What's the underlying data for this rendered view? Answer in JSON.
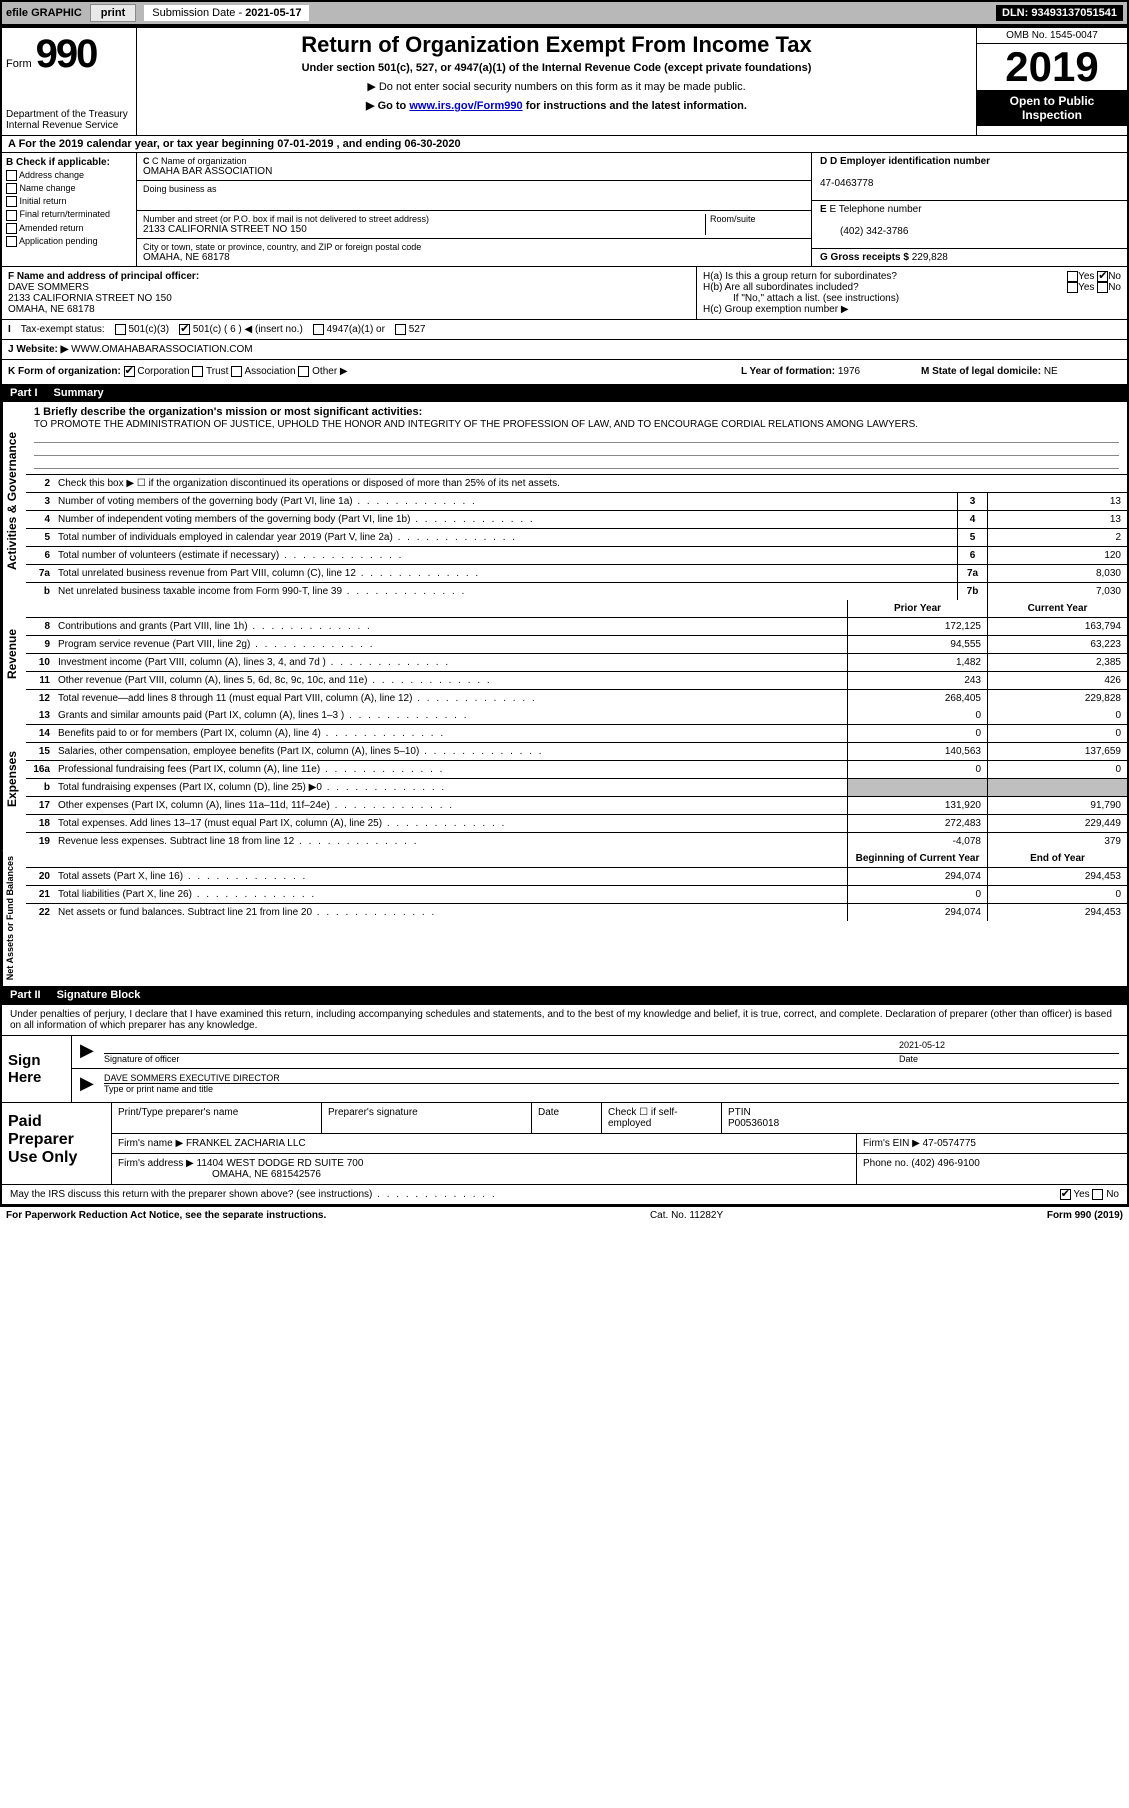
{
  "topbar": {
    "efile": "efile GRAPHIC",
    "print": "print",
    "sub_label": "Submission Date - ",
    "sub_date": "2021-05-17",
    "dln": "DLN: 93493137051541"
  },
  "header": {
    "form_word": "Form",
    "form_num": "990",
    "dept": "Department of the Treasury\nInternal Revenue Service",
    "title": "Return of Organization Exempt From Income Tax",
    "subtitle": "Under section 501(c), 527, or 4947(a)(1) of the Internal Revenue Code (except private foundations)",
    "note1": "▶ Do not enter social security numbers on this form as it may be made public.",
    "note2_pre": "▶ Go to ",
    "note2_link": "www.irs.gov/Form990",
    "note2_post": " for instructions and the latest information.",
    "omb": "OMB No. 1545-0047",
    "year": "2019",
    "open": "Open to Public Inspection"
  },
  "line_a": "A For the 2019 calendar year, or tax year beginning 07-01-2019   , and ending 06-30-2020",
  "col_b": {
    "header": "B Check if applicable:",
    "items": [
      "Address change",
      "Name change",
      "Initial return",
      "Final return/terminated",
      "Amended return",
      "Application pending"
    ]
  },
  "col_c": {
    "name_lbl": "C Name of organization",
    "name": "OMAHA BAR ASSOCIATION",
    "dba_lbl": "Doing business as",
    "dba": "",
    "street_lbl": "Number and street (or P.O. box if mail is not delivered to street address)",
    "room_lbl": "Room/suite",
    "street": "2133 CALIFORNIA STREET NO 150",
    "city_lbl": "City or town, state or province, country, and ZIP or foreign postal code",
    "city": "OMAHA, NE  68178"
  },
  "col_d": {
    "ein_lbl": "D Employer identification number",
    "ein": "47-0463778",
    "phone_lbl": "E Telephone number",
    "phone": "(402) 342-3786",
    "gross_lbl": "G Gross receipts $",
    "gross": "229,828"
  },
  "row_f": {
    "f_lbl": "F  Name and address of principal officer:",
    "f_name": "DAVE SOMMERS",
    "f_addr1": "2133 CALIFORNIA STREET NO 150",
    "f_addr2": "OMAHA, NE  68178",
    "ha": "H(a)  Is this a group return for subordinates?",
    "hb": "H(b)  Are all subordinates included?",
    "hb_note": "If \"No,\" attach a list. (see instructions)",
    "hc": "H(c)  Group exemption number ▶",
    "yes": "Yes",
    "no": "No"
  },
  "tax_status": {
    "label": "Tax-exempt status:",
    "opt1": "501(c)(3)",
    "opt2": "501(c) ( 6 ) ◀ (insert no.)",
    "opt3": "4947(a)(1) or",
    "opt4": "527"
  },
  "website": {
    "j_lbl": "J  Website: ▶",
    "url": "WWW.OMAHABARASSOCIATION.COM"
  },
  "k_row": {
    "k_lbl": "K Form of organization:",
    "corp": "Corporation",
    "trust": "Trust",
    "assoc": "Association",
    "other": "Other ▶",
    "l_lbl": "L Year of formation:",
    "l_val": "1976",
    "m_lbl": "M State of legal domicile:",
    "m_val": "NE"
  },
  "part1": {
    "num": "Part I",
    "title": "Summary"
  },
  "mission": {
    "q1_lbl": "1  Briefly describe the organization's mission or most significant activities:",
    "q1_text": "TO PROMOTE THE ADMINISTRATION OF JUSTICE, UPHOLD THE HONOR AND INTEGRITY OF THE PROFESSION OF LAW, AND TO ENCOURAGE CORDIAL RELATIONS AMONG LAWYERS.",
    "q2_lbl": "Check this box ▶ ☐  if the organization discontinued its operations or disposed of more than 25% of its net assets."
  },
  "activities": {
    "side": "Activities & Governance",
    "rows": [
      {
        "n": "3",
        "d": "Number of voting members of the governing body (Part VI, line 1a)",
        "box": "3",
        "v": "13"
      },
      {
        "n": "4",
        "d": "Number of independent voting members of the governing body (Part VI, line 1b)",
        "box": "4",
        "v": "13"
      },
      {
        "n": "5",
        "d": "Total number of individuals employed in calendar year 2019 (Part V, line 2a)",
        "box": "5",
        "v": "2"
      },
      {
        "n": "6",
        "d": "Total number of volunteers (estimate if necessary)",
        "box": "6",
        "v": "120"
      },
      {
        "n": "7a",
        "d": "Total unrelated business revenue from Part VIII, column (C), line 12",
        "box": "7a",
        "v": "8,030"
      },
      {
        "n": "b",
        "d": "Net unrelated business taxable income from Form 990-T, line 39",
        "box": "7b",
        "v": "7,030"
      }
    ]
  },
  "revenue": {
    "side": "Revenue",
    "hdr_prior": "Prior Year",
    "hdr_curr": "Current Year",
    "rows": [
      {
        "n": "8",
        "d": "Contributions and grants (Part VIII, line 1h)",
        "p": "172,125",
        "c": "163,794"
      },
      {
        "n": "9",
        "d": "Program service revenue (Part VIII, line 2g)",
        "p": "94,555",
        "c": "63,223"
      },
      {
        "n": "10",
        "d": "Investment income (Part VIII, column (A), lines 3, 4, and 7d )",
        "p": "1,482",
        "c": "2,385"
      },
      {
        "n": "11",
        "d": "Other revenue (Part VIII, column (A), lines 5, 6d, 8c, 9c, 10c, and 11e)",
        "p": "243",
        "c": "426"
      },
      {
        "n": "12",
        "d": "Total revenue—add lines 8 through 11 (must equal Part VIII, column (A), line 12)",
        "p": "268,405",
        "c": "229,828"
      }
    ]
  },
  "expenses": {
    "side": "Expenses",
    "rows": [
      {
        "n": "13",
        "d": "Grants and similar amounts paid (Part IX, column (A), lines 1–3 )",
        "p": "0",
        "c": "0"
      },
      {
        "n": "14",
        "d": "Benefits paid to or for members (Part IX, column (A), line 4)",
        "p": "0",
        "c": "0"
      },
      {
        "n": "15",
        "d": "Salaries, other compensation, employee benefits (Part IX, column (A), lines 5–10)",
        "p": "140,563",
        "c": "137,659"
      },
      {
        "n": "16a",
        "d": "Professional fundraising fees (Part IX, column (A), line 11e)",
        "p": "0",
        "c": "0"
      },
      {
        "n": "b",
        "d": "Total fundraising expenses (Part IX, column (D), line 25) ▶0",
        "p": "",
        "c": "",
        "shade": true
      },
      {
        "n": "17",
        "d": "Other expenses (Part IX, column (A), lines 11a–11d, 11f–24e)",
        "p": "131,920",
        "c": "91,790"
      },
      {
        "n": "18",
        "d": "Total expenses. Add lines 13–17 (must equal Part IX, column (A), line 25)",
        "p": "272,483",
        "c": "229,449"
      },
      {
        "n": "19",
        "d": "Revenue less expenses. Subtract line 18 from line 12",
        "p": "-4,078",
        "c": "379"
      }
    ]
  },
  "netassets": {
    "side": "Net Assets or Fund Balances",
    "hdr_begin": "Beginning of Current Year",
    "hdr_end": "End of Year",
    "rows": [
      {
        "n": "20",
        "d": "Total assets (Part X, line 16)",
        "p": "294,074",
        "c": "294,453"
      },
      {
        "n": "21",
        "d": "Total liabilities (Part X, line 26)",
        "p": "0",
        "c": "0"
      },
      {
        "n": "22",
        "d": "Net assets or fund balances. Subtract line 21 from line 20",
        "p": "294,074",
        "c": "294,453"
      }
    ]
  },
  "part2": {
    "num": "Part II",
    "title": "Signature Block"
  },
  "penalties": "Under penalties of perjury, I declare that I have examined this return, including accompanying schedules and statements, and to the best of my knowledge and belief, it is true, correct, and complete. Declaration of preparer (other than officer) is based on all information of which preparer has any knowledge.",
  "sign": {
    "label": "Sign Here",
    "sig_lbl": "Signature of officer",
    "date_lbl": "Date",
    "date": "2021-05-12",
    "name": "DAVE SOMMERS  EXECUTIVE DIRECTOR",
    "name_lbl": "Type or print name and title"
  },
  "paid": {
    "label": "Paid Preparer Use Only",
    "col1": "Print/Type preparer's name",
    "col2": "Preparer's signature",
    "col3": "Date",
    "col4_lbl": "Check ☐ if self-employed",
    "col5_lbl": "PTIN",
    "ptin": "P00536018",
    "firm_lbl": "Firm's name    ▶",
    "firm": "FRANKEL ZACHARIA LLC",
    "ein_lbl": "Firm's EIN ▶",
    "ein": "47-0574775",
    "addr_lbl": "Firm's address ▶",
    "addr1": "11404 WEST DODGE RD SUITE 700",
    "addr2": "OMAHA, NE  681542576",
    "phone_lbl": "Phone no.",
    "phone": "(402) 496-9100"
  },
  "discuss": {
    "text": "May the IRS discuss this return with the preparer shown above? (see instructions)",
    "yes": "Yes",
    "no": "No"
  },
  "footer": {
    "left": "For Paperwork Reduction Act Notice, see the separate instructions.",
    "mid": "Cat. No. 11282Y",
    "right": "Form 990 (2019)"
  }
}
